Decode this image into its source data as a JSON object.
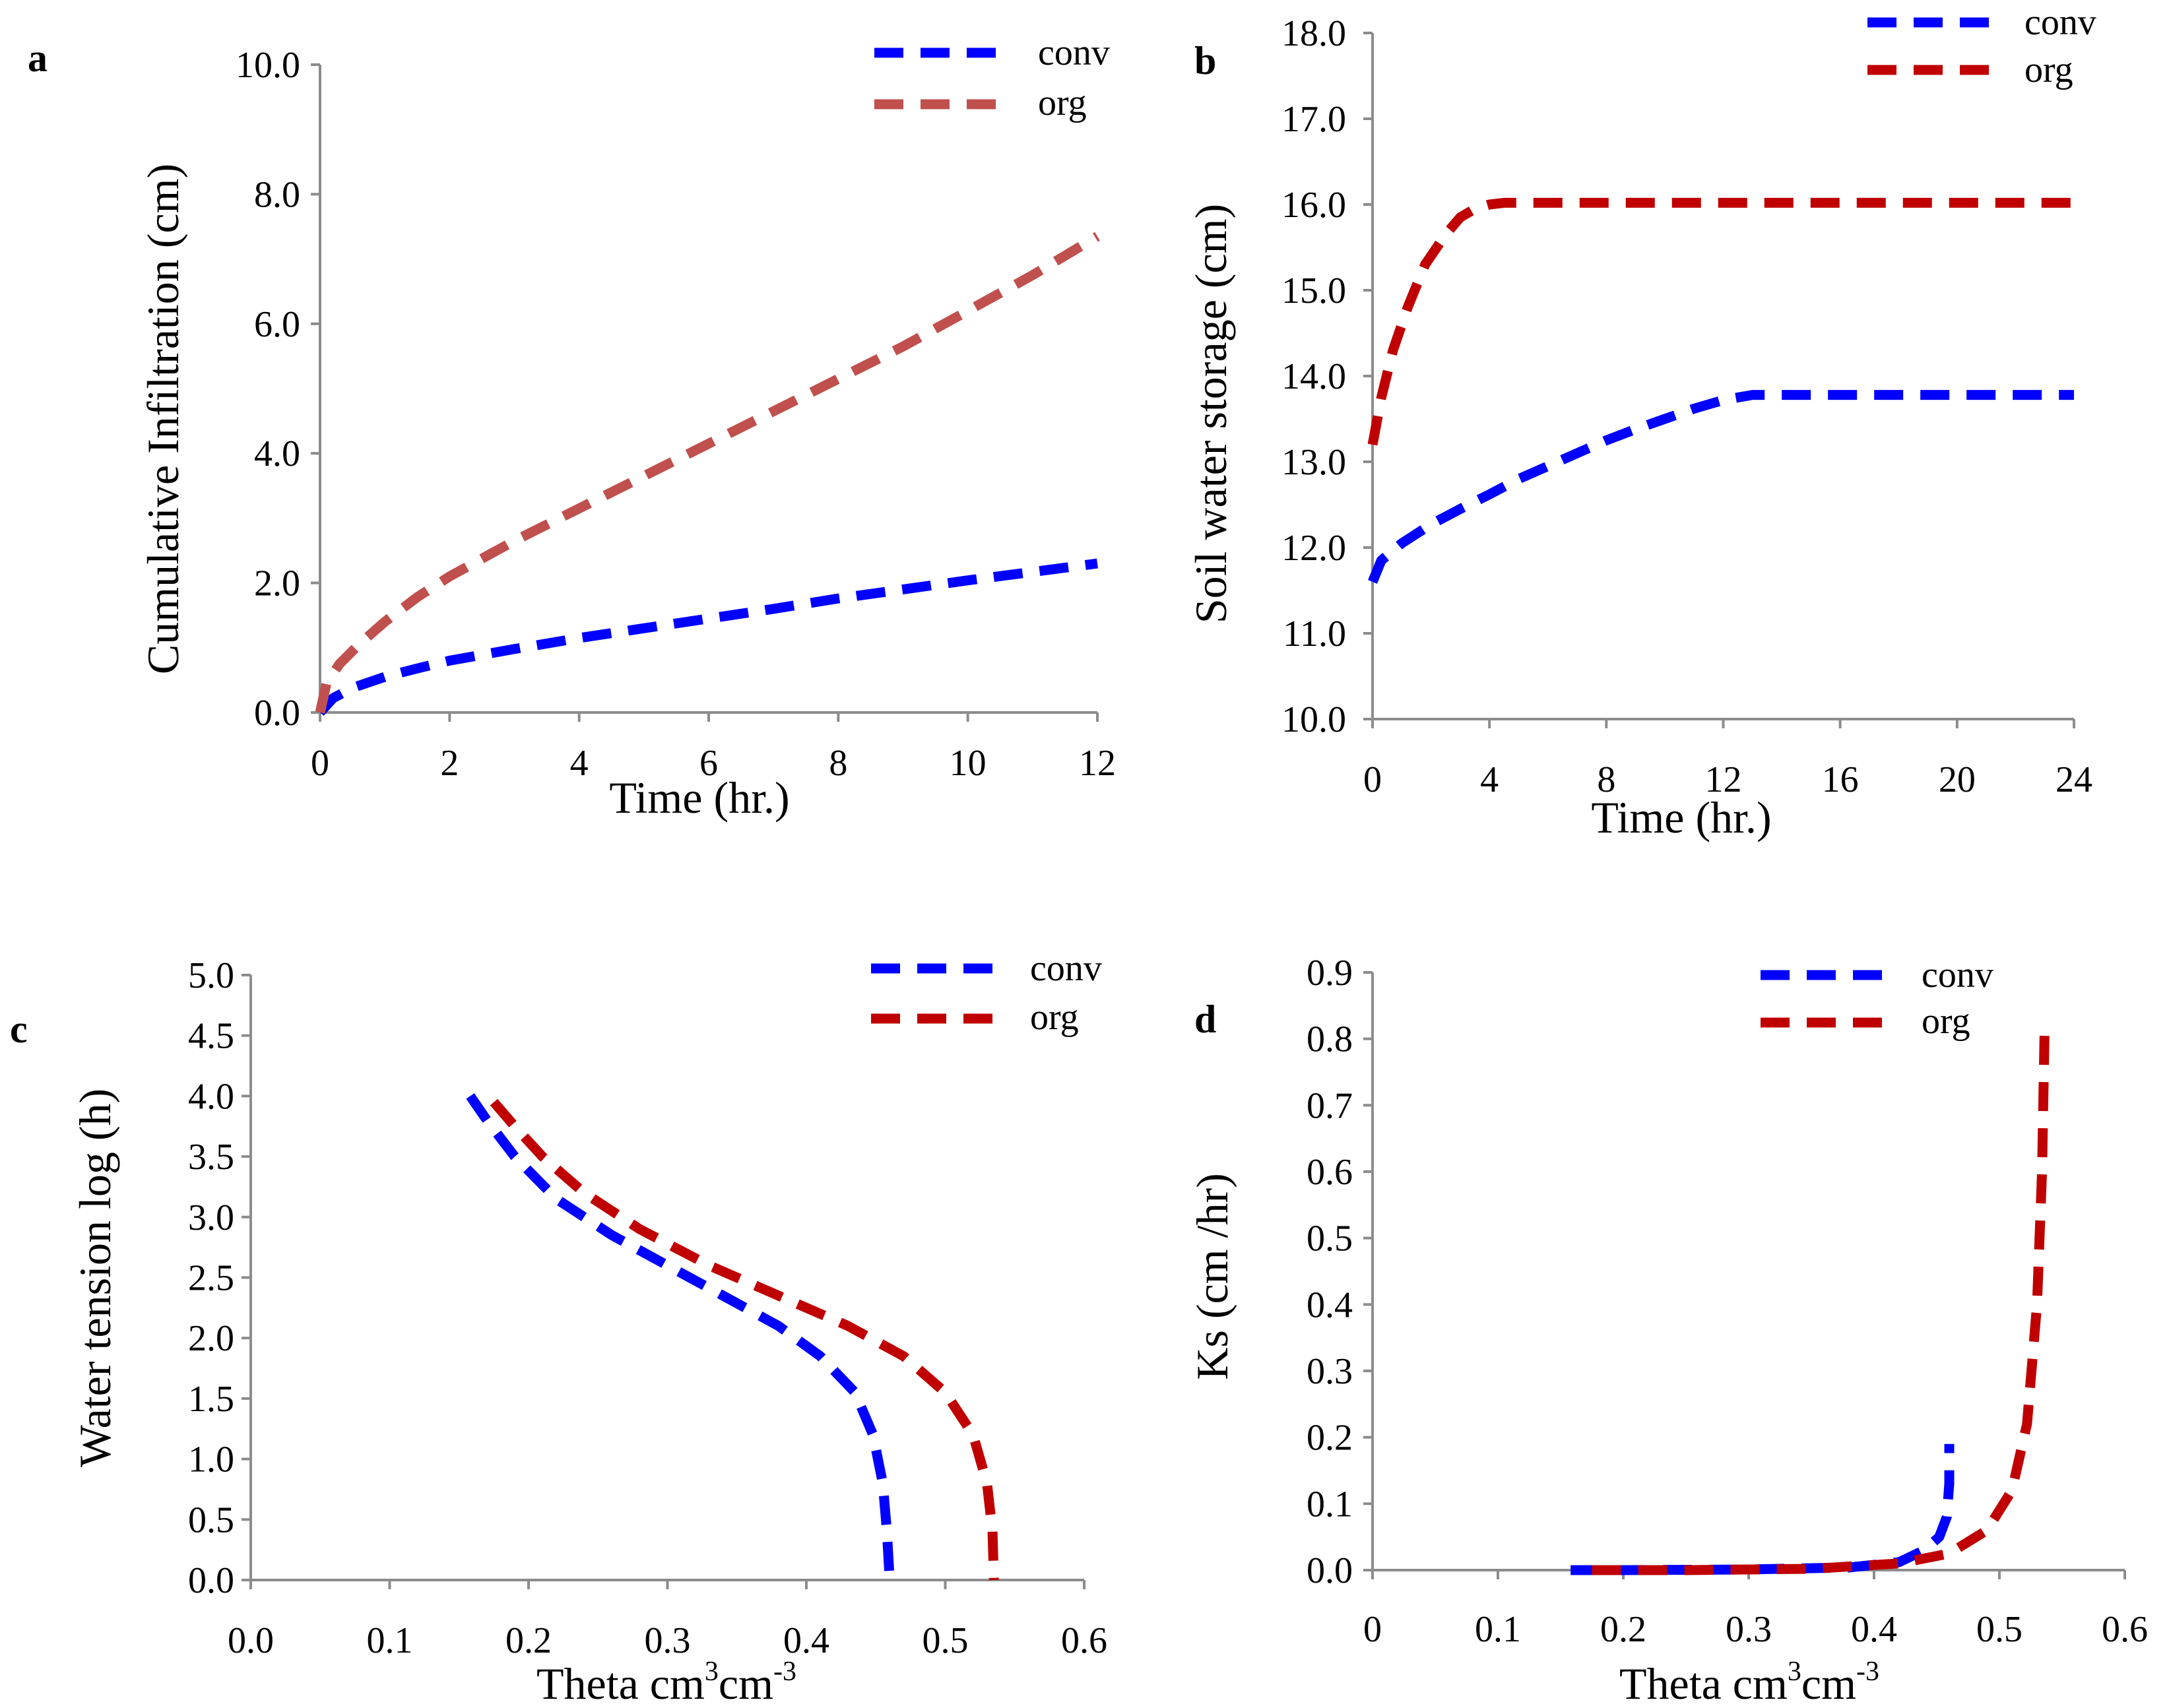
{
  "colors": {
    "conv": "#0000ff",
    "org_a": "#c0504d",
    "org": "#c00000",
    "axis": "#8c8c8c"
  },
  "chart_data": [
    {
      "panel": "a",
      "type": "line",
      "xlabel": "Time (hr.)",
      "ylabel": "Cumulative Infiltration (cm)",
      "xlim": [
        0,
        12
      ],
      "ylim": [
        0,
        10
      ],
      "xticks": [
        0,
        2,
        4,
        6,
        8,
        10,
        12
      ],
      "xtick_labels": [
        "0",
        "2",
        "4",
        "6",
        "8",
        "10",
        "12"
      ],
      "yticks": [
        0,
        2,
        4,
        6,
        8,
        10
      ],
      "ytick_labels": [
        "0.0",
        "2.0",
        "4.0",
        "6.0",
        "8.0",
        "10.0"
      ],
      "grid": false,
      "legend_position": "top-right",
      "series": [
        {
          "name": "conv",
          "color": "#0000ff",
          "x": [
            0,
            0.2,
            0.5,
            1,
            1.5,
            2,
            3,
            4,
            5,
            6,
            7,
            8,
            9,
            10,
            11,
            12
          ],
          "y": [
            0,
            0.22,
            0.38,
            0.55,
            0.68,
            0.8,
            0.98,
            1.15,
            1.3,
            1.45,
            1.6,
            1.76,
            1.9,
            2.04,
            2.17,
            2.3
          ]
        },
        {
          "name": "org",
          "color": "#c0504d",
          "x": [
            0,
            0.1,
            0.3,
            0.6,
            1,
            1.5,
            2,
            3,
            4,
            5,
            6,
            7,
            8,
            9,
            10,
            11,
            12
          ],
          "y": [
            0,
            0.45,
            0.75,
            1.05,
            1.4,
            1.78,
            2.1,
            2.65,
            3.15,
            3.65,
            4.15,
            4.65,
            5.15,
            5.65,
            6.2,
            6.75,
            7.35
          ]
        }
      ]
    },
    {
      "panel": "b",
      "type": "line",
      "xlabel": "Time (hr.)",
      "ylabel": "Soil water storage (cm)",
      "xlim": [
        0,
        24
      ],
      "ylim": [
        10,
        18
      ],
      "xticks": [
        0,
        4,
        8,
        12,
        16,
        20,
        24
      ],
      "xtick_labels": [
        "0",
        "4",
        "8",
        "12",
        "16",
        "20",
        "24"
      ],
      "yticks": [
        10,
        11,
        12,
        13,
        14,
        15,
        16,
        17,
        18
      ],
      "ytick_labels": [
        "10.0",
        "11.0",
        "12.0",
        "13.0",
        "14.0",
        "15.0",
        "16.0",
        "17.0",
        "18.0"
      ],
      "grid": false,
      "legend_position": "top-right",
      "series": [
        {
          "name": "conv",
          "color": "#0000ff",
          "x": [
            0,
            0.3,
            1,
            2,
            3,
            4,
            5,
            6,
            7,
            8,
            9,
            10,
            11,
            12,
            13,
            14,
            16,
            20,
            24
          ],
          "y": [
            11.6,
            11.85,
            12.05,
            12.27,
            12.45,
            12.62,
            12.8,
            12.95,
            13.1,
            13.25,
            13.38,
            13.5,
            13.62,
            13.72,
            13.78,
            13.78,
            13.78,
            13.78,
            13.78
          ]
        },
        {
          "name": "org",
          "color": "#c00000",
          "x": [
            0,
            0.3,
            0.7,
            1.2,
            1.8,
            2.5,
            3,
            3.5,
            4,
            4.5,
            6,
            8,
            12,
            16,
            20,
            24
          ],
          "y": [
            13.2,
            13.75,
            14.3,
            14.8,
            15.3,
            15.65,
            15.85,
            15.95,
            16.0,
            16.02,
            16.02,
            16.02,
            16.02,
            16.02,
            16.02,
            16.02
          ]
        }
      ]
    },
    {
      "panel": "c",
      "type": "line",
      "xlabel_main": "Theta cm",
      "xlabel_sup1": "3",
      "xlabel_mid": "cm",
      "xlabel_sup2": "-3",
      "ylabel": "Water tension log (h)",
      "xlim": [
        0,
        0.6
      ],
      "ylim": [
        0,
        5
      ],
      "xticks": [
        0,
        0.1,
        0.2,
        0.3,
        0.4,
        0.5,
        0.6
      ],
      "xtick_labels": [
        "0.0",
        "0.1",
        "0.2",
        "0.3",
        "0.4",
        "0.5",
        "0.6"
      ],
      "yticks": [
        0,
        0.5,
        1,
        1.5,
        2,
        2.5,
        3,
        3.5,
        4,
        4.5,
        5
      ],
      "ytick_labels": [
        "0.0",
        "0.5",
        "1.0",
        "1.5",
        "2.0",
        "2.5",
        "3.0",
        "3.5",
        "4.0",
        "4.5",
        "5.0"
      ],
      "grid": false,
      "legend_position": "top-right",
      "series": [
        {
          "name": "conv",
          "color": "#0000ff",
          "x": [
            0.158,
            0.17,
            0.19,
            0.22,
            0.26,
            0.3,
            0.34,
            0.38,
            0.41,
            0.435,
            0.448,
            0.455,
            0.458,
            0.46
          ],
          "y": [
            4.0,
            3.8,
            3.5,
            3.15,
            2.85,
            2.6,
            2.35,
            2.1,
            1.85,
            1.55,
            1.2,
            0.8,
            0.4,
            0.0
          ]
        },
        {
          "name": "org",
          "color": "#c00000",
          "x": [
            0.175,
            0.19,
            0.21,
            0.24,
            0.28,
            0.33,
            0.38,
            0.43,
            0.47,
            0.5,
            0.52,
            0.53,
            0.534,
            0.535
          ],
          "y": [
            3.95,
            3.75,
            3.5,
            3.2,
            2.9,
            2.6,
            2.35,
            2.1,
            1.85,
            1.55,
            1.2,
            0.8,
            0.4,
            0.0
          ]
        }
      ]
    },
    {
      "panel": "d",
      "type": "line",
      "xlabel_main": "Theta cm",
      "xlabel_sup1": "3",
      "xlabel_mid": "cm",
      "xlabel_sup2": "-3",
      "ylabel": "Ks  (cm /hr)",
      "xlim": [
        0,
        0.6
      ],
      "ylim": [
        0,
        0.9
      ],
      "xticks": [
        0,
        0.1,
        0.2,
        0.3,
        0.4,
        0.5,
        0.6
      ],
      "xtick_labels": [
        "0",
        "0.1",
        "0.2",
        "0.3",
        "0.4",
        "0.5",
        "0.6"
      ],
      "yticks": [
        0,
        0.1,
        0.2,
        0.3,
        0.4,
        0.5,
        0.6,
        0.7,
        0.8,
        0.9
      ],
      "ytick_labels": [
        "0.0",
        "0.1",
        "0.2",
        "0.3",
        "0.4",
        "0.5",
        "0.6",
        "0.7",
        "0.8",
        "0.9"
      ],
      "grid": false,
      "legend_position": "top-right",
      "series": [
        {
          "name": "conv",
          "color": "#0000ff",
          "x": [
            0.158,
            0.2,
            0.3,
            0.38,
            0.42,
            0.44,
            0.452,
            0.458,
            0.46,
            0.46
          ],
          "y": [
            0,
            0,
            0.001,
            0.004,
            0.012,
            0.03,
            0.05,
            0.08,
            0.13,
            0.19
          ]
        },
        {
          "name": "org",
          "color": "#c00000",
          "x": [
            0.175,
            0.25,
            0.35,
            0.42,
            0.46,
            0.49,
            0.51,
            0.522,
            0.53,
            0.534,
            0.536
          ],
          "y": [
            0,
            0,
            0.002,
            0.01,
            0.025,
            0.06,
            0.12,
            0.22,
            0.4,
            0.6,
            0.81
          ]
        }
      ]
    }
  ]
}
